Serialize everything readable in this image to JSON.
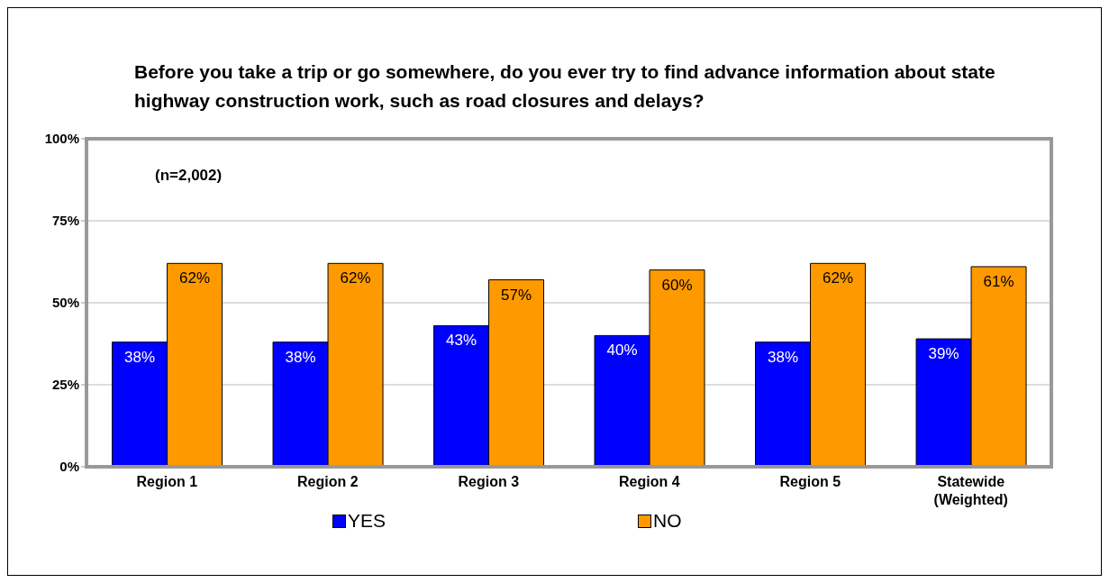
{
  "chart_data": {
    "type": "bar",
    "title": "Before you take a trip or go somewhere, do you ever try to find advance information about state highway construction work, such as road closures and delays?",
    "categories": [
      "Region 1",
      "Region 2",
      "Region 3",
      "Region 4",
      "Region 5",
      "Statewide (Weighted)"
    ],
    "series": [
      {
        "name": "YES",
        "color": "#0000ff",
        "values": [
          38,
          38,
          43,
          40,
          38,
          39
        ],
        "value_labels": [
          "38%",
          "38%",
          "43%",
          "40%",
          "38%",
          "39%"
        ]
      },
      {
        "name": "NO",
        "color": "#ff9900",
        "values": [
          62,
          62,
          57,
          60,
          62,
          61
        ],
        "value_labels": [
          "62%",
          "62%",
          "57%",
          "60%",
          "62%",
          "61%"
        ]
      }
    ],
    "ylim": [
      0,
      100
    ],
    "yticks": [
      {
        "value": 0,
        "label": "0%"
      },
      {
        "value": 25,
        "label": "25%"
      },
      {
        "value": 50,
        "label": "50%"
      },
      {
        "value": 75,
        "label": "75%"
      },
      {
        "value": 100,
        "label": "100%"
      }
    ],
    "grid": "y",
    "legend": "bottom",
    "annotations": [
      "(n=2,002)"
    ]
  }
}
